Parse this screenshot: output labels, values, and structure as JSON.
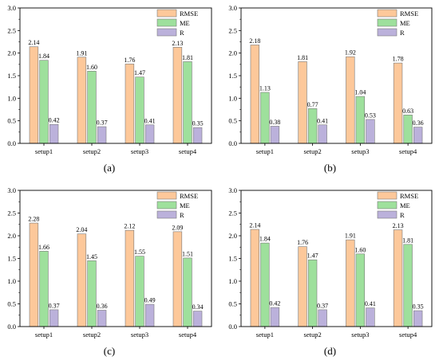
{
  "chart_data": [
    {
      "panel": "(a)",
      "type": "bar",
      "categories": [
        "setup1",
        "setup2",
        "setup3",
        "setup4"
      ],
      "series": [
        {
          "name": "RMSE",
          "color": "#FDC89A",
          "values": [
            2.14,
            1.91,
            1.76,
            2.13
          ]
        },
        {
          "name": "ME",
          "color": "#9EE09C",
          "values": [
            1.84,
            1.6,
            1.47,
            1.81
          ]
        },
        {
          "name": "R",
          "color": "#BBB1DB",
          "values": [
            0.42,
            0.37,
            0.41,
            0.35
          ]
        }
      ],
      "ylim": [
        0,
        3.0
      ],
      "yticks": [
        "0.0",
        "0.5",
        "1.0",
        "1.5",
        "2.0",
        "2.5",
        "3.0"
      ],
      "legend": "top-right"
    },
    {
      "panel": "(b)",
      "type": "bar",
      "categories": [
        "setup1",
        "setup2",
        "setup3",
        "setup4"
      ],
      "series": [
        {
          "name": "RMSE",
          "color": "#FDC89A",
          "values": [
            2.18,
            1.81,
            1.92,
            1.78
          ]
        },
        {
          "name": "ME",
          "color": "#9EE09C",
          "values": [
            1.13,
            0.77,
            1.04,
            0.63
          ]
        },
        {
          "name": "R",
          "color": "#BBB1DB",
          "values": [
            0.38,
            0.41,
            0.53,
            0.36
          ]
        }
      ],
      "ylim": [
        0,
        3.0
      ],
      "yticks": [
        "0.0",
        "0.5",
        "1.0",
        "1.5",
        "2.0",
        "2.5",
        "3.0"
      ],
      "legend": "top-right"
    },
    {
      "panel": "(c)",
      "type": "bar",
      "categories": [
        "setup1",
        "setup2",
        "setup3",
        "setup4"
      ],
      "series": [
        {
          "name": "RMSE",
          "color": "#FDC89A",
          "values": [
            2.28,
            2.04,
            2.12,
            2.09
          ]
        },
        {
          "name": "ME",
          "color": "#9EE09C",
          "values": [
            1.66,
            1.45,
            1.55,
            1.51
          ]
        },
        {
          "name": "R",
          "color": "#BBB1DB",
          "values": [
            0.37,
            0.36,
            0.49,
            0.34
          ]
        }
      ],
      "ylim": [
        0,
        3.0
      ],
      "yticks": [
        "0.0",
        "0.5",
        "1.0",
        "1.5",
        "2.0",
        "2.5",
        "3.0"
      ],
      "legend": "top-right"
    },
    {
      "panel": "(d)",
      "type": "bar",
      "categories": [
        "setup1",
        "setup2",
        "setup3",
        "setup4"
      ],
      "series": [
        {
          "name": "RMSE",
          "color": "#FDC89A",
          "values": [
            2.14,
            1.76,
            1.91,
            2.13
          ]
        },
        {
          "name": "ME",
          "color": "#9EE09C",
          "values": [
            1.84,
            1.47,
            1.6,
            1.81
          ]
        },
        {
          "name": "R",
          "color": "#BBB1DB",
          "values": [
            0.42,
            0.37,
            0.41,
            0.35
          ]
        }
      ],
      "ylim": [
        0,
        3.0
      ],
      "yticks": [
        "0.0",
        "0.5",
        "1.0",
        "1.5",
        "2.0",
        "2.5",
        "3.0"
      ],
      "legend": "top-right"
    }
  ]
}
